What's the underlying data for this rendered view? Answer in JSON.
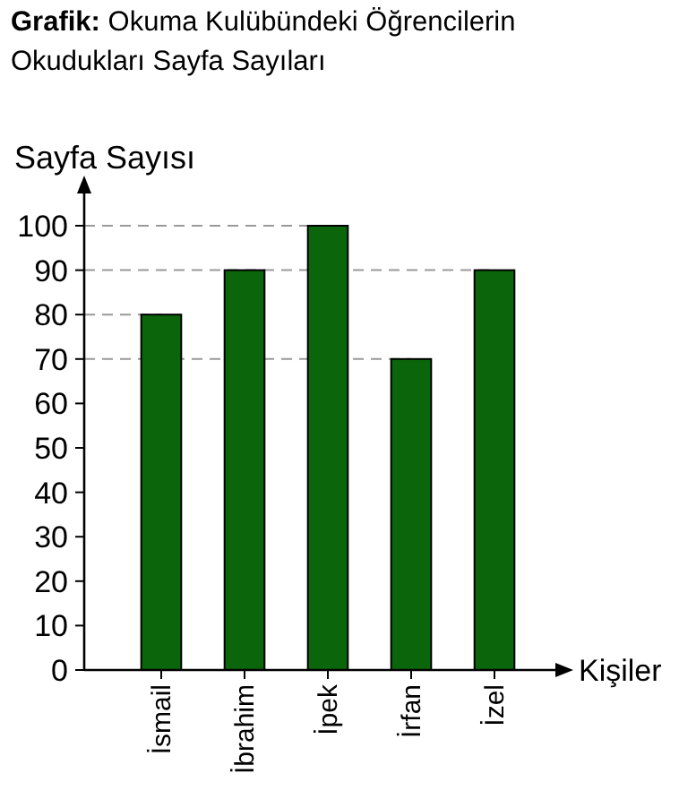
{
  "chart_data": {
    "type": "bar",
    "title": "Grafik: Okuma Kulübündeki Öğrencilerin Okudukları Sayfa Sayıları",
    "ylabel": "Sayfa Sayısı",
    "xlabel": "Kişiler",
    "categories": [
      "İsmail",
      "İbrahim",
      "İpek",
      "İrfan",
      "İzel"
    ],
    "values": [
      80,
      90,
      100,
      70,
      90
    ],
    "color": "#0b650b",
    "ylim": [
      0,
      100
    ],
    "yticks": [
      0,
      10,
      20,
      30,
      40,
      50,
      60,
      70,
      80,
      90,
      100
    ],
    "ref_lines": [
      {
        "axis": "y",
        "value": 70,
        "line_style": "dashed",
        "color": "#999999"
      },
      {
        "axis": "y",
        "value": 80,
        "line_style": "dashed",
        "color": "#999999"
      },
      {
        "axis": "y",
        "value": 90,
        "line_style": "dashed",
        "color": "#999999"
      },
      {
        "axis": "y",
        "value": 100,
        "line_style": "dashed",
        "color": "#999999"
      }
    ],
    "grid": false
  }
}
